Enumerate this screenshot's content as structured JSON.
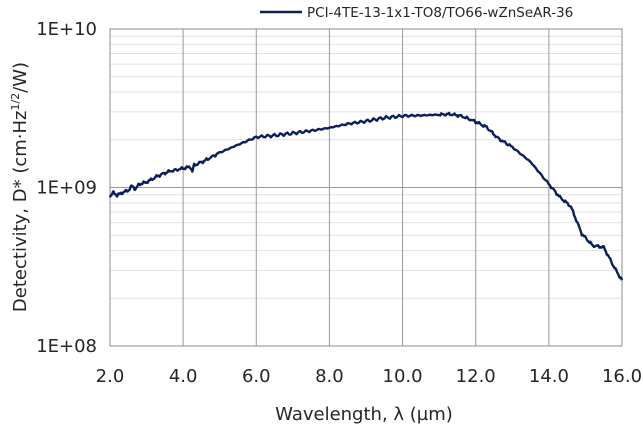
{
  "chart_data": {
    "type": "line",
    "title": "",
    "xlabel": "Wavelength, λ (µm)",
    "ylabel": "Detectivity, D* (cm·Hz1/2/W)",
    "ylabel_parts": {
      "pre": "Detectivity, D* (cm·Hz",
      "sup": "1/2",
      "post": "/W)"
    },
    "xlim": [
      2,
      16
    ],
    "ylim": [
      100000000,
      10000000000
    ],
    "yscale": "log",
    "x_ticks": [
      "2.0",
      "4.0",
      "6.0",
      "8.0",
      "10.0",
      "12.0",
      "14.0",
      "16.0"
    ],
    "y_ticks": [
      "1E+08",
      "1E+09",
      "1E+10"
    ],
    "grid": true,
    "legend_position": "top-right",
    "series": [
      {
        "name": "PCI-4TE-13-1x1-TO8/TO66-wZnSeAR-36",
        "color": "#0b1f5c",
        "points": [
          [
            2.0,
            880000000
          ],
          [
            2.1,
            930000000
          ],
          [
            2.2,
            890000000
          ],
          [
            2.3,
            920000000
          ],
          [
            2.5,
            960000000
          ],
          [
            2.6,
            1020000000
          ],
          [
            2.7,
            980000000
          ],
          [
            2.8,
            1050000000
          ],
          [
            3.0,
            1080000000
          ],
          [
            3.3,
            1180000000
          ],
          [
            3.6,
            1260000000
          ],
          [
            4.0,
            1320000000
          ],
          [
            4.2,
            1350000000
          ],
          [
            4.25,
            1260000000
          ],
          [
            4.3,
            1380000000
          ],
          [
            4.6,
            1480000000
          ],
          [
            5.0,
            1660000000
          ],
          [
            5.5,
            1860000000
          ],
          [
            6.0,
            2080000000
          ],
          [
            6.5,
            2130000000
          ],
          [
            7.0,
            2200000000
          ],
          [
            7.5,
            2280000000
          ],
          [
            8.0,
            2380000000
          ],
          [
            8.5,
            2520000000
          ],
          [
            9.0,
            2620000000
          ],
          [
            9.5,
            2750000000
          ],
          [
            10.0,
            2830000000
          ],
          [
            10.5,
            2850000000
          ],
          [
            11.0,
            2880000000
          ],
          [
            11.3,
            2900000000
          ],
          [
            11.6,
            2830000000
          ],
          [
            12.0,
            2600000000
          ],
          [
            12.3,
            2400000000
          ],
          [
            12.6,
            2050000000
          ],
          [
            13.0,
            1800000000
          ],
          [
            13.5,
            1450000000
          ],
          [
            14.0,
            1050000000
          ],
          [
            14.3,
            870000000
          ],
          [
            14.6,
            760000000
          ],
          [
            14.9,
            510000000
          ],
          [
            15.2,
            430000000
          ],
          [
            15.5,
            420000000
          ],
          [
            15.8,
            310000000
          ],
          [
            16.0,
            260000000
          ]
        ]
      }
    ]
  }
}
